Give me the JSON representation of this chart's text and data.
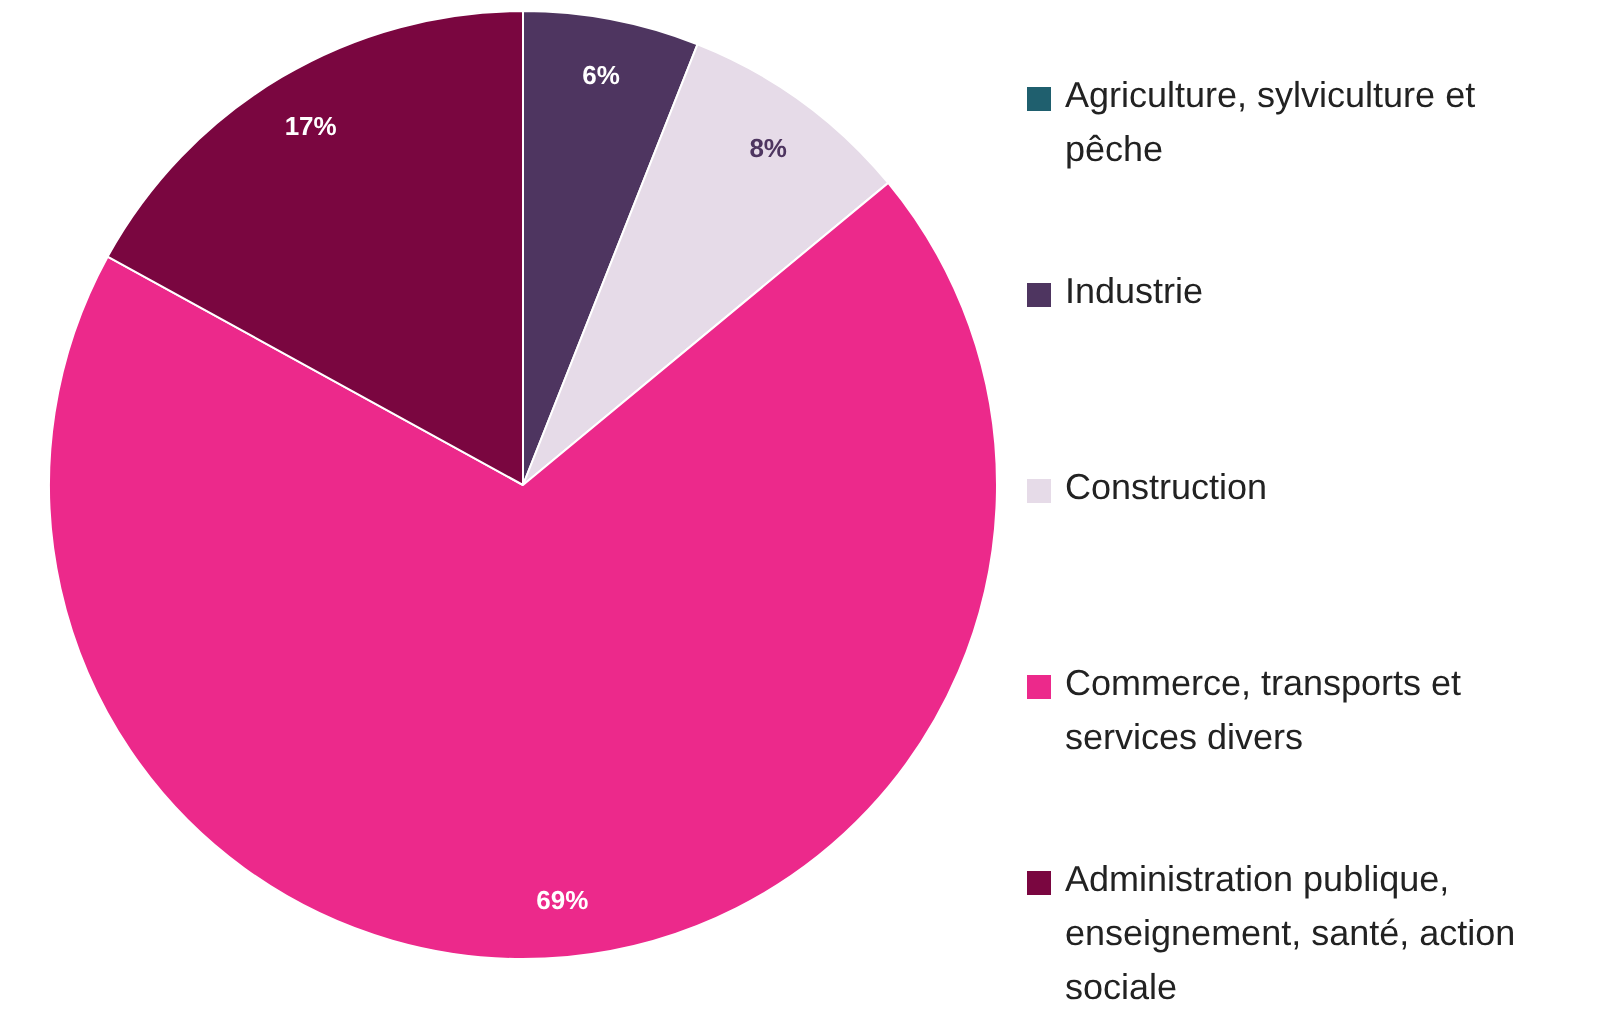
{
  "chart_data": {
    "type": "pie",
    "categories": [
      "Agriculture, sylviculture et pêche",
      "Industrie",
      "Construction",
      "Commerce, transports et services divers",
      "Administration publique, enseignement, santé, action sociale"
    ],
    "values": [
      0,
      6,
      8,
      69,
      17
    ],
    "colors": [
      "#1f5f6e",
      "#4e3560",
      "#e6dbe8",
      "#ec298b",
      "#7a0640"
    ],
    "value_labels": [
      null,
      "6%",
      "8%",
      "69%",
      "17%"
    ],
    "legend": "right"
  }
}
